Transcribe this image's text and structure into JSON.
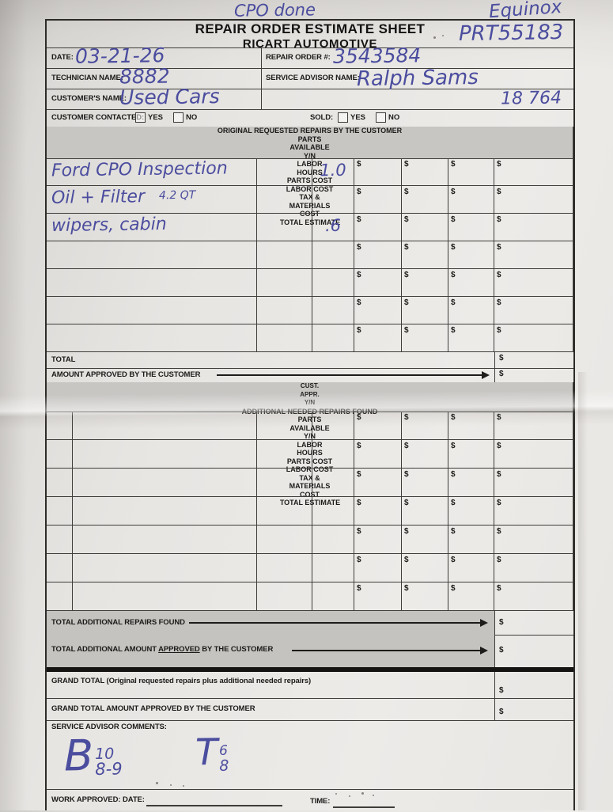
{
  "currency": "$",
  "colors": {
    "ink": "#4b4d9e",
    "paper": "#e7e5e2",
    "line": "#3f3d39",
    "header_fill": "#c8c6c3",
    "shaded_row_fill": "#c5c3c0"
  },
  "annotations": {
    "top_note": "CPO done",
    "vehicle_note": "Equinox",
    "tag_number": "PRT55183",
    "stock_number": "18 764",
    "comment_1_letter": "B",
    "comment_1_sup": "10",
    "comment_1_sub": "8-9",
    "comment_2_letter": "T",
    "comment_2_sup": "6",
    "comment_2_sub": "8"
  },
  "header": {
    "title": "REPAIR ORDER ESTIMATE SHEET",
    "subtitle": "RICART AUTOMOTIVE"
  },
  "info": {
    "date_label": "DATE:",
    "date_value": "03-21-26",
    "repair_order_label": "REPAIR ORDER #:",
    "repair_order_value": "3543584",
    "technician_label": "TECHNICIAN NAME:",
    "technician_value": "8882",
    "advisor_label": "SERVICE ADVISOR NAME:",
    "advisor_value": "Ralph Sams",
    "customer_label": "CUSTOMER'S NAME:",
    "customer_value": "Used Cars",
    "contacted_label": "CUSTOMER CONTACTED:",
    "sold_label": "SOLD:",
    "yes_label": "YES",
    "no_label": "NO"
  },
  "table1": {
    "columns": [
      "ORIGINAL REQUESTED REPAIRS BY THE CUSTOMER",
      "PARTS\nAVAILABLE\nY/N",
      "LABOR\nHOURS",
      "PARTS COST",
      "LABOR COST",
      "TAX &\nMATERIALS\nCOST",
      "TOTAL ESTIMATE"
    ],
    "rows": [
      {
        "description": "Ford CPO Inspection",
        "labor_hours": "1.0"
      },
      {
        "description": "Oil + Filter",
        "note": "4.2 QT"
      },
      {
        "description": "wipers, cabin",
        "labor_hours": ".6"
      },
      {},
      {},
      {},
      {}
    ],
    "total_label": "TOTAL",
    "approved_label": "AMOUNT APPROVED BY THE CUSTOMER"
  },
  "table2": {
    "cust_col": "CUST.\nAPPR.\nY/N",
    "columns": [
      "ADDITIONAL NEEDED REPAIRS FOUND",
      "PARTS\nAVAILABLE\nY/N",
      "LABOR\nHOURS",
      "PARTS COST",
      "LABOR COST",
      "TAX &\nMATERIALS\nCOST",
      "TOTAL ESTIMATE"
    ],
    "rows": [
      {},
      {},
      {},
      {},
      {},
      {},
      {}
    ],
    "total_additional_label": "TOTAL ADDITIONAL REPAIRS FOUND",
    "approved_prefix": "TOTAL ADDITIONAL AMOUNT ",
    "approved_underlined": "APPROVED",
    "approved_suffix": " BY THE CUSTOMER"
  },
  "footer": {
    "grand_total_label": "GRAND TOTAL (Original requested repairs plus additional needed repairs)",
    "grand_total_approved_label": "GRAND TOTAL AMOUNT APPROVED BY THE CUSTOMER",
    "comments_label": "SERVICE ADVISOR COMMENTS:",
    "work_approved_label": "WORK APPROVED:",
    "date_label": "DATE:",
    "time_label": "TIME:"
  }
}
